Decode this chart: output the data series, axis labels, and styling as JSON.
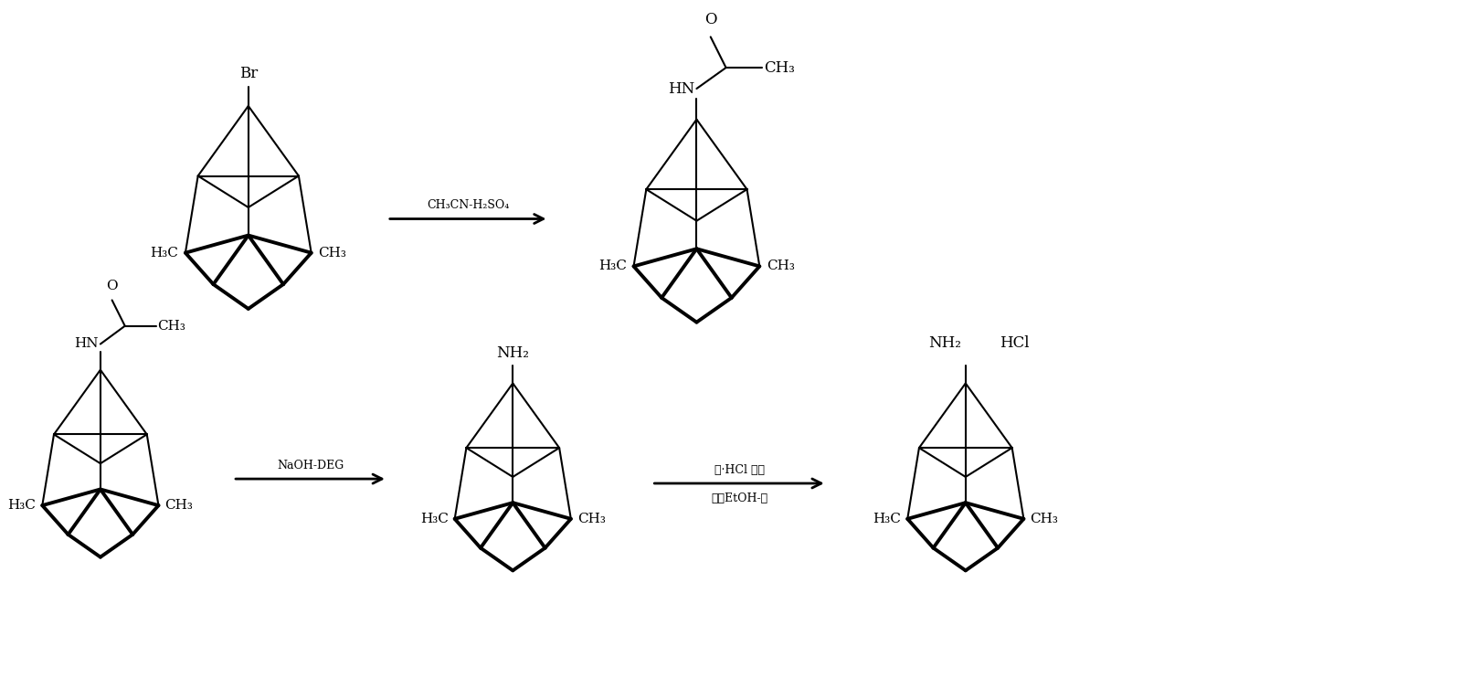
{
  "background_color": "#ffffff",
  "fig_width": 16.1,
  "fig_height": 7.42,
  "dpi": 100,
  "reaction1_arrow_label": "CH₃CN-H₂SO₄",
  "reaction2_arrow_label": "NaOH-DEG",
  "reaction3_arrow_label1": "醛·HCl 气体",
  "reaction3_arrow_label2": "结晶EtOH-醛",
  "line_color": "#000000",
  "lw_thin": 1.5,
  "lw_thick": 2.8,
  "font_size": 11,
  "arrow_font_size": 9
}
